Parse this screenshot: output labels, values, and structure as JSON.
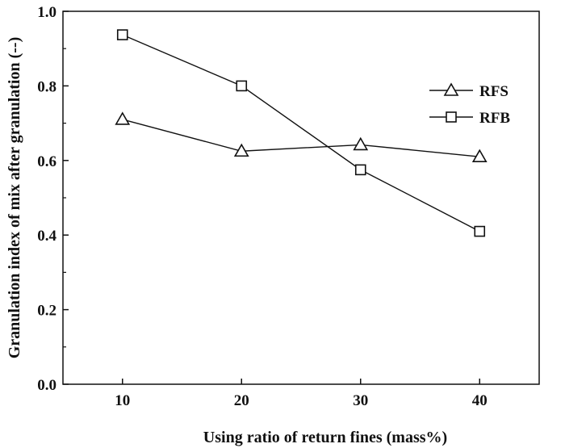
{
  "chart_data": {
    "type": "line",
    "title": "",
    "xlabel": "Using ratio of return fines (mass%)",
    "ylabel": "Granulation index of mix  after granulation (--)",
    "x": [
      10,
      20,
      30,
      40
    ],
    "xticks": [
      "10",
      "20",
      "30",
      "40"
    ],
    "yticks": [
      "0.0",
      "0.2",
      "0.4",
      "0.6",
      "0.8",
      "1.0"
    ],
    "xlim": [
      5,
      45
    ],
    "ylim": [
      0.0,
      1.0
    ],
    "grid": false,
    "legend_position": "right",
    "series": [
      {
        "name": "RFS",
        "marker": "triangle",
        "color": "#111111",
        "values": [
          0.71,
          0.625,
          0.642,
          0.61
        ]
      },
      {
        "name": "RFB",
        "marker": "square",
        "color": "#111111",
        "values": [
          0.937,
          0.8,
          0.575,
          0.41
        ]
      }
    ]
  }
}
